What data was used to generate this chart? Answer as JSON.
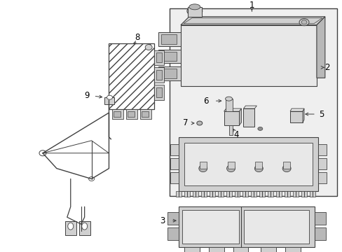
{
  "bg_color": "#ffffff",
  "lc": "#404040",
  "lc2": "#555555",
  "gray1": "#e8e8e8",
  "gray2": "#d0d0d0",
  "gray3": "#b8b8b8",
  "gray4": "#909090",
  "panel_fill": "#efefef",
  "figsize": [
    4.89,
    3.6
  ],
  "dpi": 100
}
